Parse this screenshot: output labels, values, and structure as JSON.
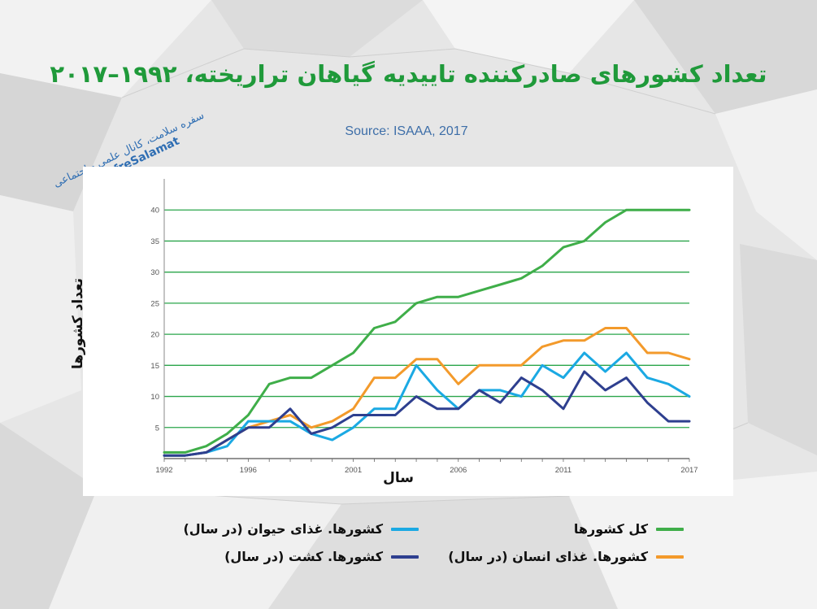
{
  "title": "تعداد کشورهای صادرکننده تاییدیه گیاهان تراریخته، ۱۹۹۲–۲۰۱۷",
  "source": "Source: ISAAA, 2017",
  "watermark": {
    "line1": "سفره سلامت، کانال علمی - اجتماعی",
    "handle": "@SofreSalamat"
  },
  "chart_data": {
    "type": "line",
    "xlabel": "سال",
    "ylabel": "تعداد کشورها",
    "xlim": [
      1992,
      2017
    ],
    "ylim": [
      0,
      45
    ],
    "xticks": [
      1992,
      1996,
      2001,
      2006,
      2011,
      2017
    ],
    "yticks": [
      5,
      10,
      15,
      20,
      25,
      30,
      35,
      40
    ],
    "grid": "horizontal",
    "x": [
      1992,
      1993,
      1994,
      1995,
      1996,
      1997,
      1998,
      1999,
      2000,
      2001,
      2002,
      2003,
      2004,
      2005,
      2006,
      2007,
      2008,
      2009,
      2010,
      2011,
      2012,
      2013,
      2014,
      2015,
      2016,
      2017
    ],
    "series": [
      {
        "name": "کل کشورها",
        "color": "#3fae49",
        "values": [
          1,
          1,
          2,
          4,
          7,
          12,
          13,
          13,
          15,
          17,
          21,
          22,
          25,
          26,
          26,
          27,
          28,
          29,
          31,
          34,
          35,
          38,
          40,
          40,
          40,
          40
        ]
      },
      {
        "name": "کشورها. غذای انسان (در سال)",
        "color": "#f39a2b",
        "values": [
          0.5,
          0.5,
          1,
          3,
          5,
          6,
          7,
          5,
          6,
          8,
          13,
          13,
          16,
          16,
          12,
          15,
          15,
          15,
          18,
          19,
          19,
          21,
          21,
          17,
          17,
          16
        ]
      },
      {
        "name": "کشورها. غذای حیوان (در سال)",
        "color": "#1ba9e3",
        "values": [
          0.5,
          0.5,
          1,
          2,
          6,
          6,
          6,
          4,
          3,
          5,
          8,
          8,
          15,
          11,
          8,
          11,
          11,
          10,
          15,
          13,
          17,
          14,
          17,
          13,
          12,
          10
        ]
      },
      {
        "name": "کشورها. کشت (در سال)",
        "color": "#2e3f8f",
        "values": [
          0.5,
          0.5,
          1,
          3,
          5,
          5,
          8,
          4,
          5,
          7,
          7,
          7,
          10,
          8,
          8,
          11,
          9,
          13,
          11,
          8,
          14,
          11,
          13,
          9,
          6,
          6
        ]
      }
    ]
  }
}
